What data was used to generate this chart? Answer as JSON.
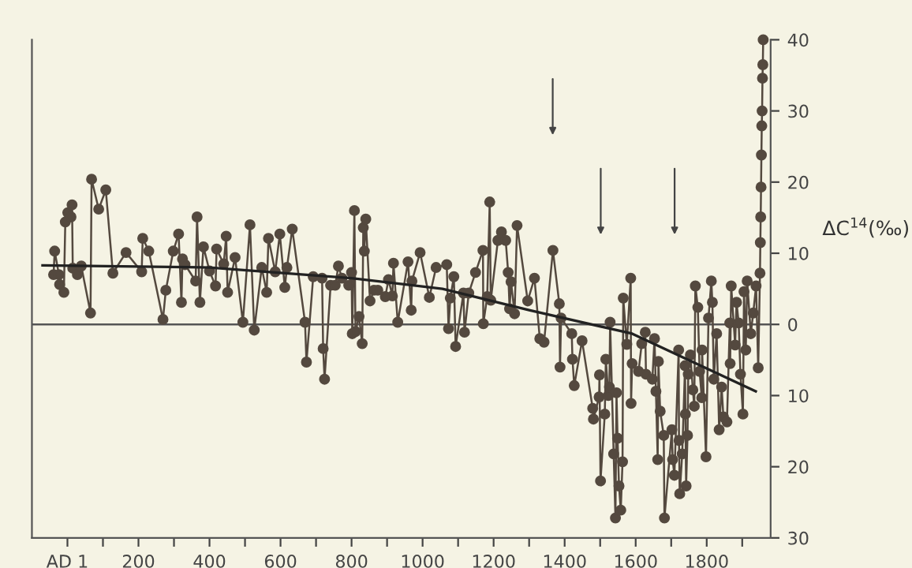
{
  "chart_data": {
    "type": "line",
    "ylabel": "ΔC$^{14}$(‰)",
    "xlim": [
      -100,
      1980
    ],
    "ylim": [
      -30,
      40
    ],
    "xticks": [
      {
        "value": 0,
        "label": "AD 1"
      },
      {
        "value": 100,
        "label": null
      },
      200,
      {
        "value": 300,
        "label": null
      },
      400,
      {
        "value": 500,
        "label": null
      },
      600,
      {
        "value": 700,
        "label": null
      },
      800,
      {
        "value": 900,
        "label": null
      },
      1000,
      {
        "value": 1100,
        "label": null
      },
      1200,
      {
        "value": 1300,
        "label": null
      },
      1400,
      {
        "value": 1500,
        "label": null
      },
      1600,
      {
        "value": 1700,
        "label": null
      },
      1800,
      {
        "value": 1900,
        "label": null
      }
    ],
    "yticks": [
      40,
      30,
      20,
      10,
      0,
      {
        "value": -10,
        "label": "10"
      },
      {
        "value": -20,
        "label": "20"
      },
      {
        "value": -30,
        "label": "30"
      }
    ],
    "grid": false,
    "legend": false,
    "ref_lines": [
      {
        "axis": "y",
        "value": 0,
        "color": "#555555"
      }
    ],
    "series": [
      {
        "color": "#54493f",
        "marker": "circle",
        "x": [
          -39,
          -36,
          -24,
          -22,
          -10,
          -6,
          1,
          10,
          13,
          15,
          28,
          39,
          65,
          68,
          88,
          108,
          128,
          165,
          209,
          212,
          229,
          269,
          277,
          298,
          313,
          321,
          324,
          331,
          361,
          365,
          373,
          383,
          400,
          417,
          420,
          440,
          447,
          451,
          472,
          494,
          514,
          526,
          547,
          561,
          566,
          585,
          598,
          612,
          618,
          633,
          669,
          673,
          692,
          717,
          720,
          724,
          741,
          754,
          763,
          773,
          792,
          800,
          802,
          808,
          811,
          821,
          830,
          833,
          836,
          840,
          852,
          863,
          874,
          895,
          904,
          915,
          918,
          930,
          959,
          968,
          970,
          993,
          1019,
          1038,
          1068,
          1073,
          1078,
          1088,
          1093,
          1115,
          1118,
          1130,
          1149,
          1170,
          1171,
          1182,
          1189,
          1192,
          1212,
          1222,
          1234,
          1241,
          1245,
          1249,
          1259,
          1266,
          1296,
          1315,
          1330,
          1342,
          1367,
          1385,
          1387,
          1390,
          1420,
          1422,
          1427,
          1449,
          1479,
          1481,
          1497,
          1498,
          1501,
          1513,
          1516,
          1523,
          1526,
          1528,
          1538,
          1543,
          1546,
          1549,
          1553,
          1558,
          1563,
          1565,
          1575,
          1586,
          1587,
          1590,
          1608,
          1617,
          1627,
          1629,
          1647,
          1653,
          1657,
          1662,
          1664,
          1669,
          1679,
          1681,
          1702,
          1704,
          1709,
          1721,
          1722,
          1724,
          1731,
          1739,
          1740,
          1742,
          1746,
          1748,
          1754,
          1761,
          1765,
          1768,
          1775,
          1780,
          1786,
          1787,
          1798,
          1805,
          1813,
          1816,
          1820,
          1828,
          1835,
          1842,
          1847,
          1857,
          1865,
          1866,
          1869,
          1880,
          1884,
          1890,
          1895,
          1902,
          1905,
          1910,
          1914,
          1924,
          1931,
          1939,
          1945,
          1950,
          1951,
          1952,
          1953,
          1954,
          1955,
          1956,
          1957,
          1958,
          1959
        ],
        "values": [
          7.0,
          10.3,
          7.0,
          5.6,
          4.5,
          14.4,
          15.7,
          15.1,
          16.8,
          7.9,
          7.0,
          8.2,
          1.6,
          20.4,
          16.2,
          18.9,
          7.2,
          10.1,
          7.4,
          12.1,
          10.3,
          0.7,
          4.8,
          10.3,
          12.7,
          3.1,
          9.2,
          8.4,
          6.1,
          15.1,
          3.1,
          10.9,
          7.5,
          5.4,
          10.6,
          8.5,
          12.4,
          4.5,
          9.4,
          0.3,
          14.0,
          -0.8,
          8.0,
          4.5,
          12.1,
          7.4,
          12.7,
          5.2,
          8.0,
          13.4,
          0.3,
          -5.3,
          6.7,
          6.5,
          -3.4,
          -7.7,
          5.5,
          5.5,
          8.2,
          6.5,
          5.5,
          7.3,
          -1.3,
          16.0,
          -1.0,
          1.1,
          -2.7,
          13.6,
          10.3,
          14.8,
          3.3,
          4.8,
          4.8,
          3.9,
          6.3,
          4.0,
          8.6,
          0.3,
          8.8,
          2.0,
          6.1,
          10.1,
          3.8,
          8.0,
          8.4,
          -0.6,
          3.7,
          6.7,
          -3.1,
          4.4,
          -1.1,
          4.4,
          7.3,
          10.4,
          0.1,
          3.9,
          17.2,
          3.4,
          11.8,
          13.0,
          11.8,
          7.3,
          2.2,
          6.0,
          1.5,
          13.9,
          3.3,
          6.5,
          -2.0,
          -2.5,
          10.4,
          2.9,
          -6.0,
          0.9,
          -1.3,
          -4.9,
          -8.6,
          -2.3,
          -11.8,
          -13.3,
          -10.2,
          -7.1,
          -22.0,
          -12.6,
          -4.9,
          -10.0,
          -8.8,
          0.3,
          -18.2,
          -27.2,
          -9.6,
          -16.0,
          -22.7,
          -26.1,
          -19.3,
          3.7,
          -2.8,
          6.5,
          -11.1,
          -5.5,
          -6.6,
          -2.7,
          -1.1,
          -7.0,
          -7.7,
          -2.0,
          -9.4,
          -19.0,
          -5.2,
          -12.2,
          -15.6,
          -27.2,
          -14.8,
          -19.0,
          -21.2,
          -3.6,
          -16.3,
          -23.8,
          -18.2,
          -5.8,
          -12.6,
          -22.7,
          -15.6,
          -7.0,
          -4.3,
          -9.2,
          -11.5,
          5.4,
          2.4,
          -6.6,
          -10.3,
          -3.6,
          -18.6,
          0.9,
          6.1,
          3.1,
          -7.7,
          -1.3,
          -14.8,
          -8.8,
          -13.0,
          -13.7,
          0.2,
          -5.5,
          5.4,
          -2.9,
          3.1,
          0.2,
          -7.0,
          -12.6,
          4.6,
          -3.6,
          6.1,
          -1.3,
          1.6,
          5.4,
          -6.1,
          7.2,
          11.5,
          15.1,
          19.3,
          23.8,
          27.9,
          30.0,
          34.6,
          36.5,
          40.0
        ]
      },
      {
        "color": "#222222",
        "marker": "none",
        "x": [
          -70,
          400,
          800,
          1056,
          1300,
          1590,
          1938
        ],
        "values": [
          8.3,
          8.0,
          6.5,
          5.0,
          2.0,
          -1.3,
          -9.4
        ]
      }
    ]
  }
}
